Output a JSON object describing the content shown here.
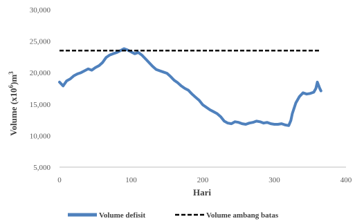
{
  "chart_data": {
    "type": "line",
    "xlabel": "Hari",
    "ylabel": "Volume (x10",
    "ylabel_sup": "6",
    "ylabel_suffix": ")m",
    "ylabel_sup2": "3",
    "xlim": [
      0,
      400
    ],
    "ylim": [
      5000,
      30000
    ],
    "x_ticks": [
      0,
      100,
      200,
      300,
      400
    ],
    "y_ticks": [
      5000,
      10000,
      15000,
      20000,
      25000,
      30000
    ],
    "x_tick_labels": [
      "0",
      "100",
      "200",
      "300",
      "400"
    ],
    "y_tick_labels": [
      "5,000",
      "10,000",
      "15,000",
      "20,000",
      "25,000",
      "30,000"
    ],
    "grid": false,
    "legend_placement": "bottom",
    "series": [
      {
        "name": "Volume defisit",
        "color": "#4f81bd",
        "style": "solid",
        "x": [
          0,
          5,
          10,
          15,
          20,
          25,
          30,
          35,
          40,
          45,
          50,
          55,
          60,
          65,
          70,
          75,
          80,
          85,
          90,
          95,
          100,
          105,
          110,
          115,
          120,
          125,
          130,
          135,
          140,
          145,
          150,
          155,
          160,
          165,
          170,
          175,
          180,
          185,
          190,
          195,
          200,
          205,
          210,
          215,
          220,
          225,
          230,
          235,
          240,
          245,
          250,
          255,
          260,
          265,
          270,
          275,
          280,
          285,
          290,
          295,
          300,
          305,
          310,
          315,
          320,
          323,
          325,
          330,
          335,
          340,
          345,
          350,
          355,
          358,
          360,
          363,
          365
        ],
        "y": [
          18500,
          17900,
          18700,
          19000,
          19500,
          19800,
          20000,
          20300,
          20600,
          20400,
          20800,
          21100,
          21600,
          22400,
          22800,
          23000,
          23200,
          23500,
          23800,
          23600,
          23300,
          23000,
          23200,
          22800,
          22200,
          21600,
          21000,
          20500,
          20300,
          20100,
          19900,
          19400,
          18800,
          18400,
          17900,
          17500,
          17200,
          16600,
          16100,
          15600,
          14900,
          14500,
          14100,
          13800,
          13500,
          13000,
          12300,
          12000,
          11900,
          12200,
          12100,
          11900,
          11800,
          12000,
          12100,
          12300,
          12200,
          12000,
          12100,
          11900,
          11800,
          11800,
          11900,
          11700,
          11600,
          12400,
          13500,
          15200,
          16200,
          16800,
          16600,
          16700,
          16900,
          17500,
          18500,
          17600,
          17100
        ]
      },
      {
        "name": "Volume ambang batas",
        "color": "#000000",
        "style": "dashed",
        "x": [
          0,
          365
        ],
        "y": [
          23500,
          23500
        ]
      }
    ]
  }
}
